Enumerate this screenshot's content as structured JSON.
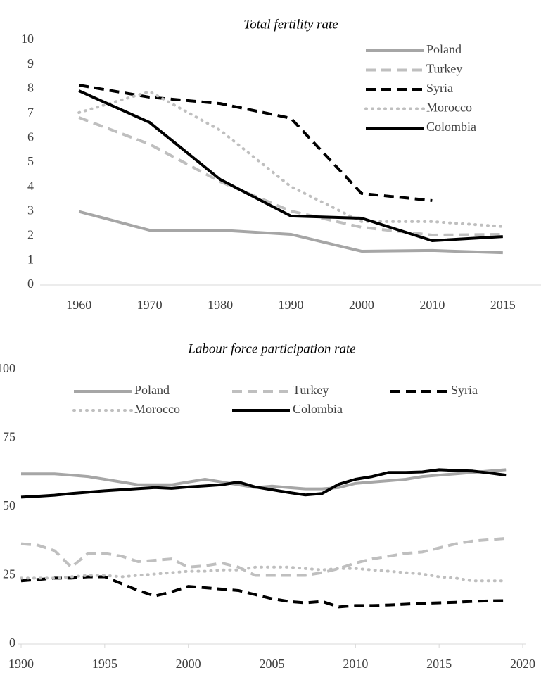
{
  "chart_data": [
    {
      "type": "line",
      "title": "Total fertility rate",
      "legend": "upper right",
      "categories": [
        "1960",
        "1970",
        "1980",
        "1990",
        "2000",
        "2010",
        "2015"
      ],
      "ylim": [
        0,
        10
      ],
      "yticks": [
        0,
        1,
        2,
        3,
        4,
        5,
        6,
        7,
        8,
        9,
        10
      ],
      "series": [
        {
          "name": "Poland",
          "color": "#a6a6a6",
          "dash": "solid",
          "values": [
            3.0,
            2.24,
            2.24,
            2.07,
            1.38,
            1.41,
            1.32
          ]
        },
        {
          "name": "Turkey",
          "color": "#bfbfbf",
          "dash": "dashed",
          "values": [
            6.84,
            5.75,
            4.22,
            3.02,
            2.36,
            2.04,
            2.07
          ]
        },
        {
          "name": "Syria",
          "color": "#000000",
          "dash": "dashed",
          "values": [
            8.16,
            7.67,
            7.41,
            6.81,
            3.74,
            3.45,
            null
          ]
        },
        {
          "name": "Morocco",
          "color": "#bfbfbf",
          "dash": "dotted",
          "values": [
            7.04,
            7.9,
            6.32,
            4.02,
            2.59,
            2.59,
            2.39
          ]
        },
        {
          "name": "Colombia",
          "color": "#000000",
          "dash": "solid",
          "values": [
            7.93,
            6.64,
            4.31,
            2.82,
            2.73,
            1.81,
            1.98
          ]
        }
      ]
    },
    {
      "type": "line",
      "title": "Labour force participation rate",
      "legend": "top",
      "x": [
        1990,
        1991,
        1992,
        1993,
        1994,
        1995,
        1996,
        1997,
        1998,
        1999,
        2000,
        2001,
        2002,
        2003,
        2004,
        2005,
        2006,
        2007,
        2008,
        2009,
        2010,
        2011,
        2012,
        2013,
        2014,
        2015,
        2016,
        2017,
        2018,
        2019
      ],
      "xlim": [
        1990,
        2020
      ],
      "xticks": [
        1990,
        1995,
        2000,
        2005,
        2010,
        2015,
        2020
      ],
      "ylim": [
        0,
        100
      ],
      "yticks": [
        0,
        25,
        50,
        75,
        100
      ],
      "series": [
        {
          "name": "Poland",
          "color": "#a6a6a6",
          "dash": "solid",
          "values": [
            62,
            62,
            62,
            61.5,
            61,
            60,
            59,
            58,
            58,
            58,
            59,
            60,
            59,
            58,
            57,
            57.5,
            57,
            56.5,
            56.5,
            57,
            58.5,
            59,
            59.5,
            60,
            61,
            61.5,
            62,
            62.5,
            63,
            63.5
          ]
        },
        {
          "name": "Turkey",
          "color": "#bfbfbf",
          "dash": "dashed",
          "values": [
            36.5,
            36,
            34,
            28,
            33,
            33,
            32,
            30,
            30.5,
            31,
            28,
            28.5,
            29.5,
            28,
            25,
            25,
            25,
            25,
            26,
            27.5,
            29.5,
            31,
            32,
            33,
            33.5,
            35,
            36.5,
            37.5,
            38,
            38.5
          ]
        },
        {
          "name": "Syria",
          "color": "#000000",
          "dash": "dashed",
          "values": [
            23,
            23.5,
            24,
            24,
            24.5,
            24.5,
            22,
            19.5,
            17.5,
            19,
            21,
            20.5,
            20,
            19.5,
            18,
            16.5,
            15.5,
            15,
            15.5,
            13.5,
            14,
            14,
            14.2,
            14.5,
            14.8,
            15,
            15.2,
            15.5,
            15.7,
            15.8
          ]
        },
        {
          "name": "Morocco",
          "color": "#bfbfbf",
          "dash": "dotted",
          "values": [
            24,
            24,
            24,
            24.5,
            25,
            25,
            24.5,
            25,
            25.5,
            26,
            26.5,
            26.5,
            27,
            27,
            28,
            28,
            28,
            27.5,
            27,
            27.5,
            27.5,
            27,
            26.5,
            26,
            25.5,
            24.5,
            24,
            23,
            23,
            23
          ]
        },
        {
          "name": "Colombia",
          "color": "#000000",
          "dash": "solid",
          "values": [
            53.5,
            53.8,
            54.2,
            54.8,
            55.3,
            55.8,
            56.2,
            56.6,
            57,
            56.7,
            57.2,
            57.6,
            58,
            59,
            57.2,
            56.2,
            55.2,
            54.3,
            54.8,
            58.2,
            60,
            61,
            62.5,
            62.5,
            62.7,
            63.5,
            63.2,
            63,
            62.3,
            61.5
          ]
        }
      ]
    }
  ]
}
